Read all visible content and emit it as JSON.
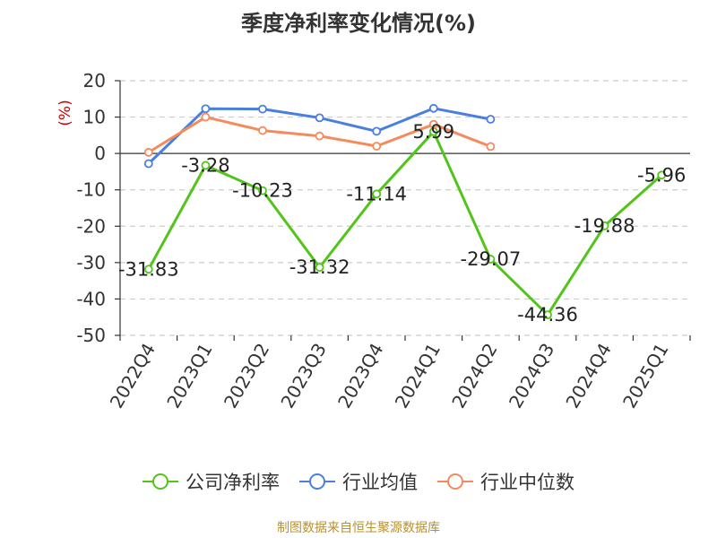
{
  "title": "季度净利率变化情况(%)",
  "source_note": "制图数据来自恒生聚源数据库",
  "colors": {
    "company": "#52c41a",
    "industry_avg": "#4a7fe0",
    "industry_median": "#f58a5c"
  },
  "chart_data": {
    "type": "line",
    "title": "季度净利率变化情况(%)",
    "ylabel": "(%)",
    "xlabel": "",
    "categories": [
      "2022Q4",
      "2023Q1",
      "2023Q2",
      "2023Q3",
      "2023Q4",
      "2024Q1",
      "2024Q2",
      "2024Q3",
      "2024Q4",
      "2025Q1"
    ],
    "ylim": [
      -50,
      20
    ],
    "yticks": [
      20,
      10,
      0,
      -10,
      -20,
      -30,
      -40,
      -50
    ],
    "grid": true,
    "legend_position": "bottom",
    "series": [
      {
        "name": "公司净利率",
        "color": "#52c41a",
        "show_labels": true,
        "values": [
          -31.83,
          -3.28,
          -10.23,
          -31.32,
          -11.14,
          5.99,
          -29.07,
          -44.36,
          -19.88,
          -5.96
        ]
      },
      {
        "name": "行业均值",
        "color": "#4a7fe0",
        "show_labels": false,
        "values": [
          -2.8,
          12.3,
          12.2,
          9.8,
          6.1,
          12.4,
          9.4,
          null,
          null,
          null
        ]
      },
      {
        "name": "行业中位数",
        "color": "#f58a5c",
        "show_labels": false,
        "values": [
          0.3,
          10.0,
          6.3,
          4.8,
          2.0,
          8.0,
          1.9,
          null,
          null,
          null
        ]
      }
    ]
  }
}
